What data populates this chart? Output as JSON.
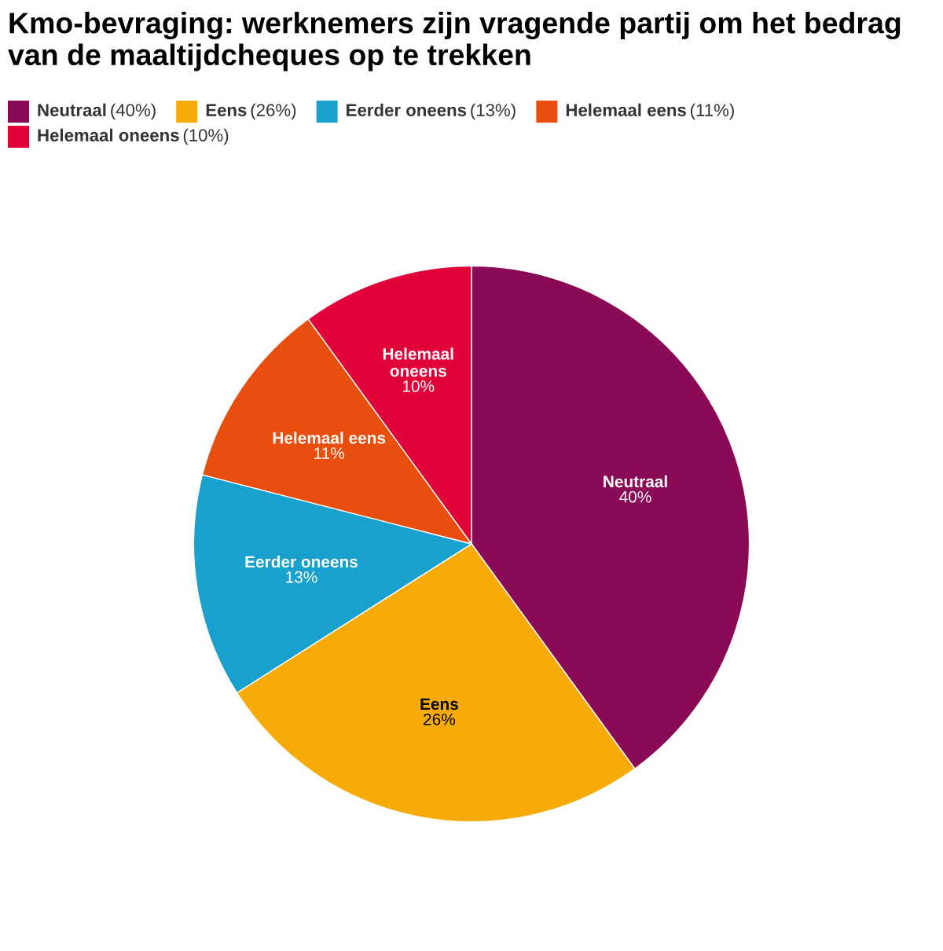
{
  "chart_data": {
    "type": "pie",
    "title": "Kmo-bevraging: werknemers zijn vragende partij om het bedrag van de maaltijdcheques op te trekken",
    "categories": [
      "Neutraal",
      "Eens",
      "Eerder oneens",
      "Helemaal eens",
      "Helemaal oneens"
    ],
    "values": [
      40,
      26,
      13,
      11,
      10
    ],
    "value_labels": [
      "40%",
      "26%",
      "13%",
      "11%",
      "10%"
    ],
    "colors": [
      "#8a0a56",
      "#f7ab08",
      "#18a1cd",
      "#e84f0f",
      "#e2023a"
    ],
    "annotations": [
      "(40%)",
      "(26%)",
      "(13%)",
      "(11%)",
      "(10%)"
    ],
    "legend": "top"
  }
}
